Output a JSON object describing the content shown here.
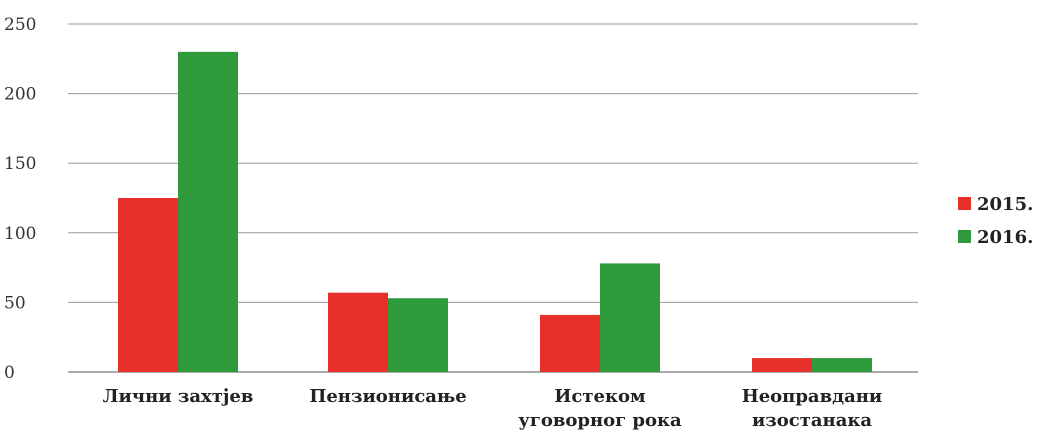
{
  "chart_data": {
    "type": "bar",
    "categories": [
      [
        "Лични захтјев"
      ],
      [
        "Пензионисање"
      ],
      [
        "Истеком",
        "уговорног рока"
      ],
      [
        "Неоправдани",
        "изостанака"
      ]
    ],
    "series": [
      {
        "name": "2015.",
        "color": "#e8302a",
        "values": [
          125,
          57,
          41,
          10
        ]
      },
      {
        "name": "2016.",
        "color": "#2e9a3c",
        "values": [
          230,
          53,
          78,
          10
        ]
      }
    ],
    "y_ticks": [
      "0",
      "50",
      "100",
      "150",
      "200",
      "250"
    ],
    "ylim": [
      0,
      250
    ],
    "grid": true,
    "legend_position": "right"
  }
}
